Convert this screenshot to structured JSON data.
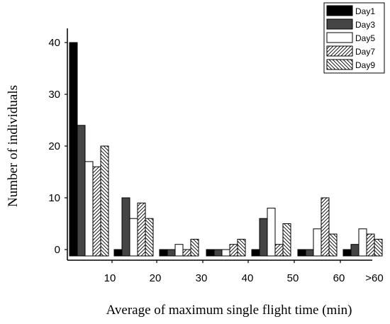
{
  "chart_data": {
    "type": "bar",
    "title": "",
    "xlabel": "Average of maximum single flight time (min)",
    "ylabel": "Number of individuals",
    "x_tick_labels": [
      "10",
      "20",
      "30",
      "40",
      "50",
      "60",
      ">60"
    ],
    "y_tick_labels": [
      "0",
      "10",
      "20",
      "30",
      "40"
    ],
    "ylim": [
      -2,
      44
    ],
    "y_ticks": [
      0,
      10,
      20,
      30,
      40
    ],
    "grid": false,
    "legend_position": "top-right",
    "categories": [
      "0-10",
      "10-20",
      "20-30",
      "30-40",
      "40-50",
      "50-60",
      ">60"
    ],
    "series": [
      {
        "name": "Day1",
        "pattern": "solid-black",
        "values": [
          40,
          0,
          0,
          0,
          0,
          0,
          0
        ]
      },
      {
        "name": "Day3",
        "pattern": "solid-darkgray",
        "values": [
          24,
          10,
          0,
          0,
          6,
          0,
          1
        ]
      },
      {
        "name": "Day5",
        "pattern": "white",
        "values": [
          17,
          6,
          1,
          0,
          8,
          4,
          4
        ]
      },
      {
        "name": "Day7",
        "pattern": "hatch-forward",
        "values": [
          16,
          9,
          0,
          1,
          1,
          10,
          3
        ]
      },
      {
        "name": "Day9",
        "pattern": "hatch-backward",
        "values": [
          20,
          6,
          2,
          2,
          5,
          3,
          2
        ]
      }
    ]
  }
}
